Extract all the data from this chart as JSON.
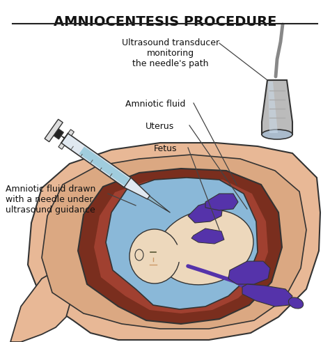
{
  "title": "AMNIOCENTESIS PROCEDURE",
  "background_color": "#ffffff",
  "labels": {
    "ultrasound": "Ultrasound transducer\nmonitoring\nthe needle's path",
    "amniotic_fluid": "Amniotic fluid",
    "uterus": "Uterus",
    "fetus": "Fetus",
    "needle": "Amniotic fluid drawn\nwith a needle under\nultrasound guidance"
  },
  "colors": {
    "skin_outer": "#e8b896",
    "skin_outer2": "#dba882",
    "skin_mid": "#c8806a",
    "uterus_wall": "#7a2e1e",
    "uterus_inner": "#a04030",
    "amniotic_sac": "#8ab8d8",
    "fetus_skin": "#edd8bc",
    "fetus_purple": "#5533aa",
    "syringe_body": "#e0e8f0",
    "syringe_barrel": "#d0dce8",
    "syringe_needle_tip": "#90b8cc",
    "syringe_plunger": "#222222",
    "syringe_fluid": "#a0ccdd",
    "transducer_body": "#bbbbbb",
    "transducer_light": "#ccddee",
    "transducer_cable": "#888888",
    "outline": "#333333",
    "text_color": "#111111",
    "line_color": "#444444"
  },
  "figsize": [
    4.74,
    4.91
  ],
  "dpi": 100
}
